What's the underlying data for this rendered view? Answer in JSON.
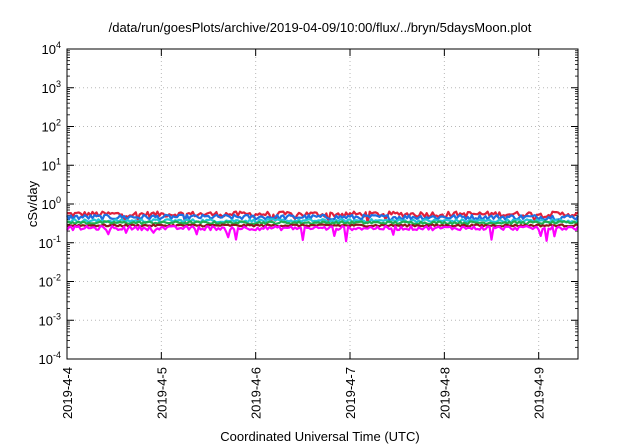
{
  "chart_data": {
    "type": "line",
    "title": "/data/run/goesPlots/archive/2019-04-09/10:00/flux/../bryn/5daysMoon.plot",
    "xlabel": "Coordinated Universal Time (UTC)",
    "ylabel": "cSv/day",
    "yscale": "log",
    "ylim": [
      0.0001,
      10000
    ],
    "yticks": [
      {
        "value": 0.0001,
        "base": "10",
        "exp": "-4"
      },
      {
        "value": 0.001,
        "base": "10",
        "exp": "-3"
      },
      {
        "value": 0.01,
        "base": "10",
        "exp": "-2"
      },
      {
        "value": 0.1,
        "base": "10",
        "exp": "-1"
      },
      {
        "value": 1,
        "base": "10",
        "exp": "0"
      },
      {
        "value": 10,
        "base": "10",
        "exp": "1"
      },
      {
        "value": 100,
        "base": "10",
        "exp": "2"
      },
      {
        "value": 1000,
        "base": "10",
        "exp": "3"
      },
      {
        "value": 10000,
        "base": "10",
        "exp": "4"
      }
    ],
    "xlim": [
      "2019-04-04 00:00",
      "2019-04-09 10:00"
    ],
    "xticks": [
      "2019-4-4",
      "2019-4-5",
      "2019-4-6",
      "2019-4-7",
      "2019-4-8",
      "2019-4-9"
    ],
    "grid": true,
    "legend": "none",
    "series": [
      {
        "color": "#e0203a",
        "level": 0.55,
        "noise": 0.16
      },
      {
        "color": "#1f6fe0",
        "level": 0.46,
        "noise": 0.15
      },
      {
        "color": "#20c6d8",
        "level": 0.37,
        "noise": 0.1
      },
      {
        "color": "#20b050",
        "level": 0.33,
        "noise": 0.08
      },
      {
        "color": "#8c1a1a",
        "level": 0.28,
        "noise": 0.06
      },
      {
        "color": "#ff00ff",
        "level": 0.24,
        "noise": 0.12
      }
    ]
  }
}
